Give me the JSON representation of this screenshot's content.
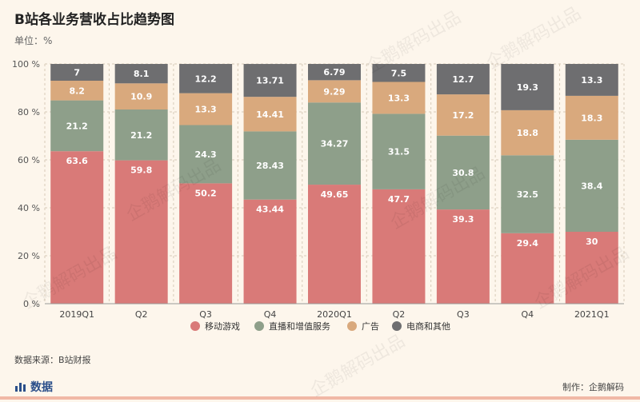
{
  "title": "B站各业务营收占比趋势图",
  "unit": "单位：%",
  "source": "数据来源：B站财报",
  "brand": "数据",
  "credit": "制作：企鹅解码",
  "watermark": "企鹅解码出品",
  "colors": {
    "background": "#fdf6ec",
    "mobile_games": "#d97a78",
    "vas": "#8e9f8a",
    "ads": "#d9a97d",
    "ecommerce": "#6e6e70"
  },
  "chart_data": {
    "type": "bar",
    "stacked": true,
    "categories": [
      "2019Q1",
      "Q2",
      "Q3",
      "Q4",
      "2020Q1",
      "Q2",
      "Q3",
      "Q4",
      "2021Q1"
    ],
    "series": [
      {
        "name": "移动游戏",
        "values": [
          63.6,
          59.8,
          50.2,
          43.44,
          49.65,
          47.7,
          39.3,
          29.4,
          30
        ]
      },
      {
        "name": "直播和增值服务",
        "values": [
          21.2,
          21.2,
          24.3,
          28.43,
          34.27,
          31.5,
          30.8,
          32.5,
          38.4
        ]
      },
      {
        "name": "广告",
        "values": [
          8.2,
          10.9,
          13.3,
          14.41,
          9.29,
          13.3,
          17.2,
          18.8,
          18.3
        ]
      },
      {
        "name": "电商和其他",
        "values": [
          7,
          8.1,
          12.2,
          13.71,
          6.79,
          7.5,
          12.7,
          19.3,
          13.3
        ]
      }
    ],
    "ylim": [
      0,
      100
    ],
    "yticks": [
      "0 %",
      "20 %",
      "40 %",
      "60 %",
      "80 %",
      "100 %"
    ],
    "legend_position": "bottom-center"
  }
}
